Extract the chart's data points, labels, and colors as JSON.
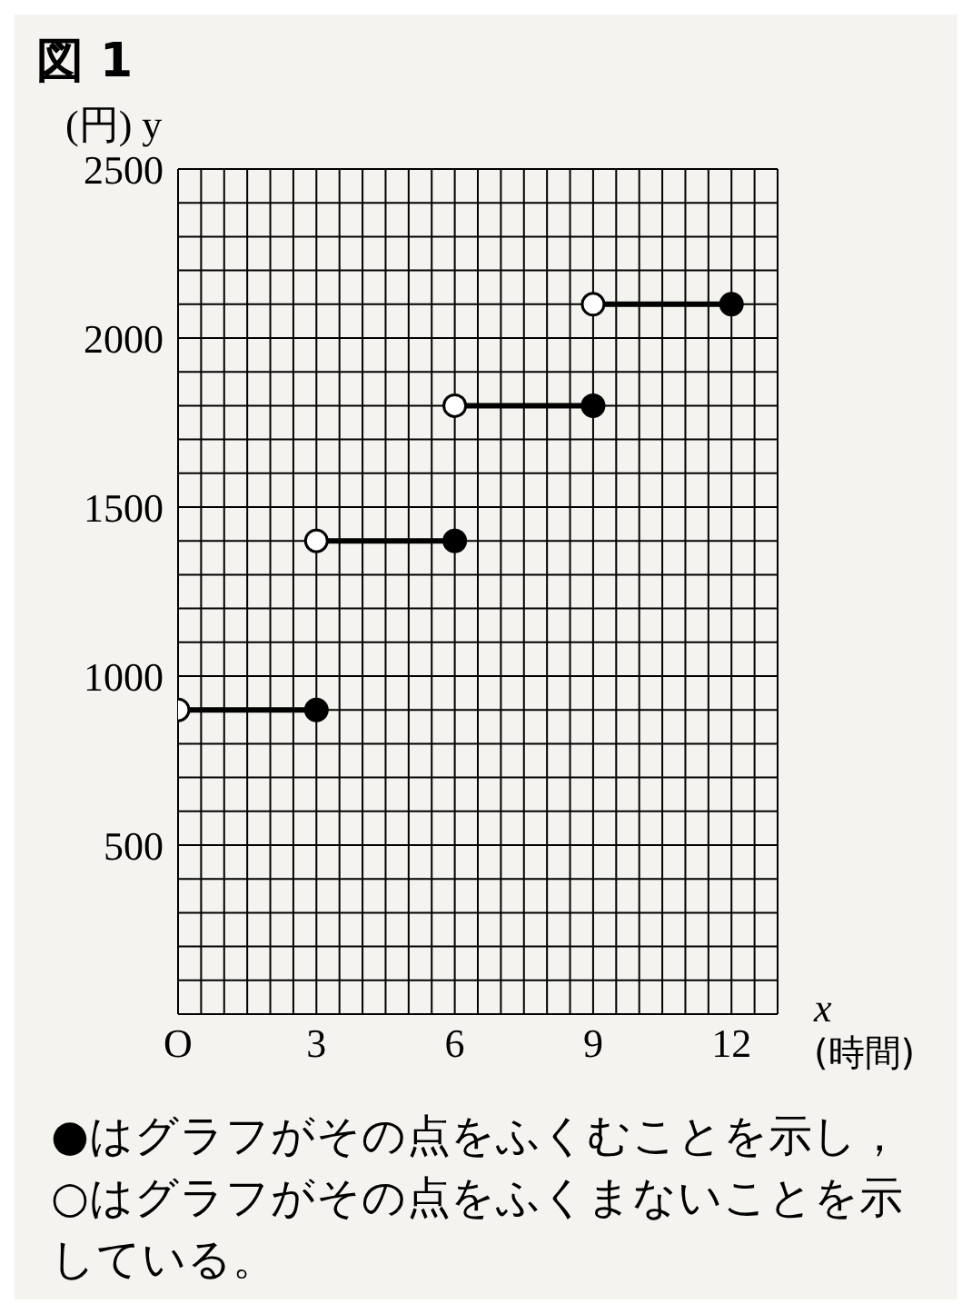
{
  "chart_data": {
    "type": "step",
    "title": "図 1",
    "ylabel": "(円) y",
    "xlabel": "x (時間)",
    "xlim": [
      0,
      13
    ],
    "ylim": [
      0,
      2500
    ],
    "xticks": [
      {
        "value": 0,
        "label": "O"
      },
      {
        "value": 0.5,
        "label": null
      },
      {
        "value": 1,
        "label": null
      },
      {
        "value": 1.5,
        "label": null
      },
      {
        "value": 2,
        "label": null
      },
      {
        "value": 2.5,
        "label": null
      },
      3,
      {
        "value": 3.5,
        "label": null
      },
      {
        "value": 4,
        "label": null
      },
      {
        "value": 4.5,
        "label": null
      },
      {
        "value": 5,
        "label": null
      },
      {
        "value": 5.5,
        "label": null
      },
      6,
      {
        "value": 6.5,
        "label": null
      },
      {
        "value": 7,
        "label": null
      },
      {
        "value": 7.5,
        "label": null
      },
      {
        "value": 8,
        "label": null
      },
      {
        "value": 8.5,
        "label": null
      },
      9,
      {
        "value": 9.5,
        "label": null
      },
      {
        "value": 10,
        "label": null
      },
      {
        "value": 10.5,
        "label": null
      },
      {
        "value": 11,
        "label": null
      },
      {
        "value": 11.5,
        "label": null
      },
      12,
      {
        "value": 12.5,
        "label": null
      },
      {
        "value": 13,
        "label": null
      }
    ],
    "yticks": [
      {
        "value": 0,
        "label": null
      },
      {
        "value": 100,
        "label": null
      },
      {
        "value": 200,
        "label": null
      },
      {
        "value": 300,
        "label": null
      },
      {
        "value": 400,
        "label": null
      },
      500,
      {
        "value": 600,
        "label": null
      },
      {
        "value": 700,
        "label": null
      },
      {
        "value": 800,
        "label": null
      },
      {
        "value": 900,
        "label": null
      },
      1000,
      {
        "value": 1100,
        "label": null
      },
      {
        "value": 1200,
        "label": null
      },
      {
        "value": 1300,
        "label": null
      },
      {
        "value": 1400,
        "label": null
      },
      1500,
      {
        "value": 1600,
        "label": null
      },
      {
        "value": 1700,
        "label": null
      },
      {
        "value": 1800,
        "label": null
      },
      {
        "value": 1900,
        "label": null
      },
      2000,
      {
        "value": 2100,
        "label": null
      },
      {
        "value": 2200,
        "label": null
      },
      {
        "value": 2300,
        "label": null
      },
      {
        "value": 2400,
        "label": null
      },
      2500
    ],
    "grid": true,
    "series": [
      {
        "color": "#000000",
        "x": [
          0,
          3
        ],
        "values": [
          900,
          900
        ],
        "marker": "none"
      },
      {
        "color": "#000000",
        "x": [
          3,
          6
        ],
        "values": [
          1400,
          1400
        ],
        "marker": "none"
      },
      {
        "color": "#000000",
        "x": [
          6,
          9
        ],
        "values": [
          1800,
          1800
        ],
        "marker": "none"
      },
      {
        "color": "#000000",
        "x": [
          9,
          12
        ],
        "values": [
          2100,
          2100
        ],
        "marker": "none"
      },
      {
        "type": "scatter",
        "color": "#000000",
        "x": [
          3,
          6,
          9,
          12
        ],
        "values": [
          900,
          1400,
          1800,
          2100
        ],
        "marker": "circle"
      },
      {
        "type": "scatter",
        "color": "#ffffff",
        "x": [
          0,
          3,
          6,
          9
        ],
        "values": [
          900,
          1400,
          1800,
          2100
        ],
        "marker": "circle"
      }
    ],
    "annotations": [
      "●はグラフがその点をふくむことを示し，○はグラフがその点をふくまないことを示している。"
    ]
  }
}
